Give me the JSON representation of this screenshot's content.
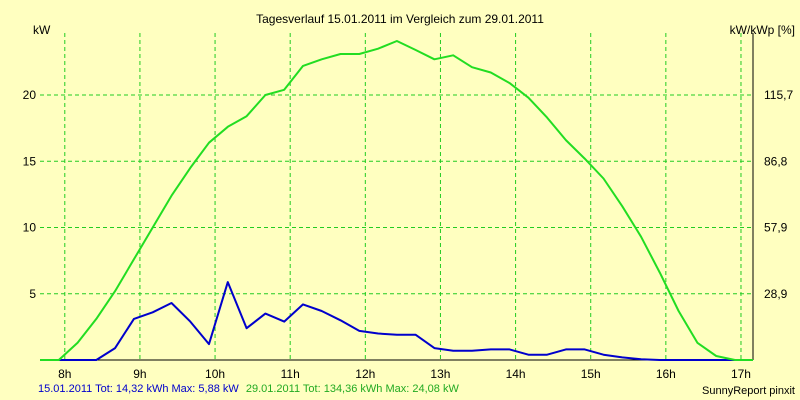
{
  "chart_data": {
    "type": "line",
    "title": "Tagesverlauf 15.01.2011 im Vergleich zum 29.01.2011",
    "ylabel_left": "kW",
    "ylabel_right": "kW/kWp [%]",
    "x_ticks": [
      {
        "x": 8,
        "label": "8h"
      },
      {
        "x": 9,
        "label": "9h"
      },
      {
        "x": 10,
        "label": "10h"
      },
      {
        "x": 11,
        "label": "11h"
      },
      {
        "x": 12,
        "label": "12h"
      },
      {
        "x": 13,
        "label": "13h"
      },
      {
        "x": 14,
        "label": "14h"
      },
      {
        "x": 15,
        "label": "15h"
      },
      {
        "x": 16,
        "label": "16h"
      },
      {
        "x": 17,
        "label": "17h"
      }
    ],
    "xlim": [
      7.67,
      17.16
    ],
    "ylim": [
      0,
      24.08
    ],
    "y_ticks_left": [
      {
        "y": 5,
        "label": "5"
      },
      {
        "y": 10,
        "label": "10"
      },
      {
        "y": 15,
        "label": "15"
      },
      {
        "y": 20,
        "label": "20"
      }
    ],
    "y_ticks_right": [
      {
        "y": 5,
        "label": "28,9"
      },
      {
        "y": 10,
        "label": "57,9"
      },
      {
        "y": 15,
        "label": "86,8"
      },
      {
        "y": 20,
        "label": "115,7"
      }
    ],
    "grid": true,
    "series": [
      {
        "name": "15.01.2011",
        "color": "#0000cc",
        "points": [
          [
            7.67,
            0
          ],
          [
            8.42,
            0
          ],
          [
            8.67,
            0.9
          ],
          [
            8.92,
            3.1
          ],
          [
            9.17,
            3.6
          ],
          [
            9.42,
            4.3
          ],
          [
            9.67,
            2.9
          ],
          [
            9.92,
            1.2
          ],
          [
            10.17,
            5.88
          ],
          [
            10.42,
            2.4
          ],
          [
            10.67,
            3.5
          ],
          [
            10.92,
            2.9
          ],
          [
            11.17,
            4.2
          ],
          [
            11.42,
            3.7
          ],
          [
            11.67,
            3.0
          ],
          [
            11.92,
            2.2
          ],
          [
            12.17,
            2.0
          ],
          [
            12.42,
            1.9
          ],
          [
            12.67,
            1.9
          ],
          [
            12.92,
            0.9
          ],
          [
            13.17,
            0.7
          ],
          [
            13.42,
            0.7
          ],
          [
            13.67,
            0.8
          ],
          [
            13.92,
            0.8
          ],
          [
            14.17,
            0.4
          ],
          [
            14.42,
            0.4
          ],
          [
            14.67,
            0.8
          ],
          [
            14.92,
            0.8
          ],
          [
            15.17,
            0.4
          ],
          [
            15.42,
            0.2
          ],
          [
            15.67,
            0.05
          ],
          [
            15.92,
            0
          ],
          [
            17.16,
            0
          ]
        ]
      },
      {
        "name": "29.01.2011",
        "color": "#22dd22",
        "points": [
          [
            7.67,
            0
          ],
          [
            7.92,
            0
          ],
          [
            8.17,
            1.3
          ],
          [
            8.42,
            3.1
          ],
          [
            8.67,
            5.2
          ],
          [
            8.92,
            7.6
          ],
          [
            9.17,
            10.0
          ],
          [
            9.42,
            12.4
          ],
          [
            9.67,
            14.5
          ],
          [
            9.92,
            16.4
          ],
          [
            10.17,
            17.6
          ],
          [
            10.42,
            18.4
          ],
          [
            10.67,
            20.0
          ],
          [
            10.92,
            20.4
          ],
          [
            11.17,
            22.2
          ],
          [
            11.42,
            22.7
          ],
          [
            11.67,
            23.1
          ],
          [
            11.92,
            23.1
          ],
          [
            12.17,
            23.5
          ],
          [
            12.42,
            24.08
          ],
          [
            12.67,
            23.4
          ],
          [
            12.92,
            22.7
          ],
          [
            13.17,
            23.0
          ],
          [
            13.42,
            22.1
          ],
          [
            13.67,
            21.7
          ],
          [
            13.92,
            20.9
          ],
          [
            14.17,
            19.8
          ],
          [
            14.42,
            18.3
          ],
          [
            14.67,
            16.6
          ],
          [
            14.92,
            15.2
          ],
          [
            15.17,
            13.7
          ],
          [
            15.42,
            11.6
          ],
          [
            15.67,
            9.3
          ],
          [
            15.92,
            6.6
          ],
          [
            16.17,
            3.7
          ],
          [
            16.42,
            1.3
          ],
          [
            16.67,
            0.3
          ],
          [
            16.92,
            0
          ],
          [
            17.16,
            0
          ]
        ]
      }
    ]
  },
  "footer": {
    "series1_summary": "15.01.2011 Tot: 14,32 kWh Max: 5,88 kW",
    "series2_summary": "29.01.2011 Tot: 134,36 kWh Max: 24,08 kW",
    "credit": "SunnyReport pinxit"
  },
  "colors": {
    "background": "#ffffc0",
    "grid": "#22cc22",
    "frame": "#000000"
  }
}
